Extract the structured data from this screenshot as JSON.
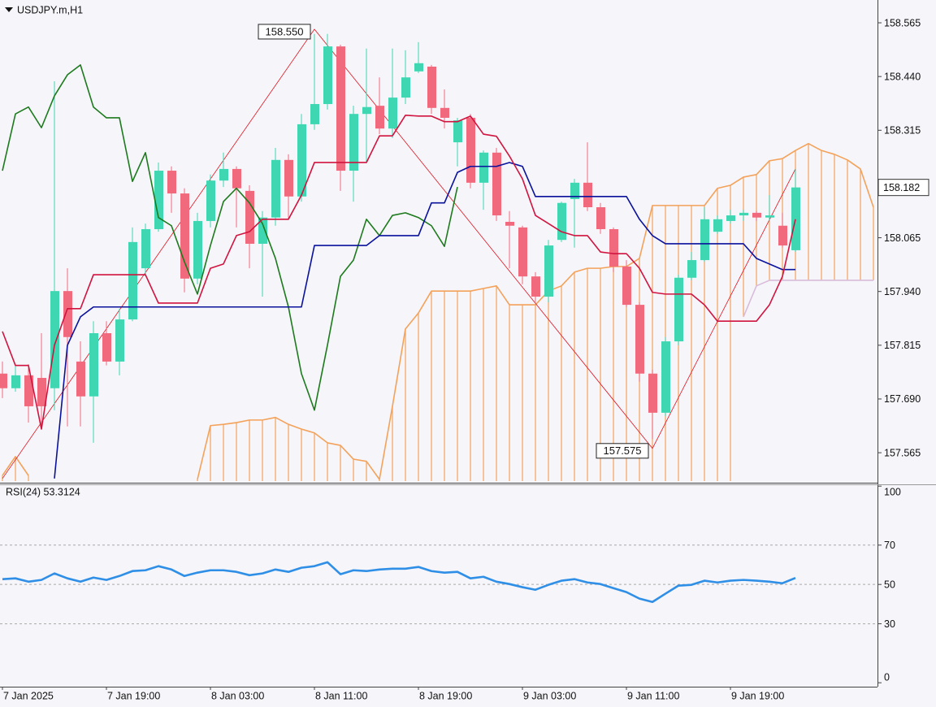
{
  "chart_data": [
    {
      "type": "candlestick",
      "title": "USDJPY.m,H1",
      "categories": [
        "7 Jan 2025",
        null,
        null,
        null,
        null,
        null,
        null,
        null,
        "7 Jan 19:00",
        null,
        null,
        null,
        null,
        null,
        null,
        null,
        "8 Jan 03:00",
        null,
        null,
        null,
        null,
        null,
        null,
        null,
        "8 Jan 11:00",
        null,
        null,
        null,
        null,
        null,
        null,
        null,
        "8 Jan 19:00",
        null,
        null,
        null,
        null,
        null,
        null,
        null,
        "9 Jan 03:00",
        null,
        null,
        null,
        null,
        null,
        null,
        null,
        "9 Jan 11:00",
        null,
        null,
        null,
        null,
        null,
        null,
        null,
        "9 Jan 19:00",
        null,
        null,
        null,
        null,
        null,
        null,
        null,
        null,
        null,
        null,
        null
      ],
      "open": [
        157.749,
        157.715,
        157.745,
        157.739,
        157.715,
        157.941,
        157.777,
        157.696,
        157.843,
        157.777,
        157.875,
        157.994,
        158.085,
        158.221,
        158.168,
        157.97,
        158.104,
        158.198,
        158.225,
        158.174,
        158.051,
        158.112,
        158.246,
        158.161,
        158.329,
        158.376,
        158.51,
        158.221,
        158.353,
        158.372,
        158.319,
        158.391,
        158.452,
        158.463,
        158.367,
        158.287,
        158.344,
        158.193,
        158.263,
        158.102,
        158.089,
        157.975,
        157.928,
        158.06,
        158.155,
        158.193,
        158.136,
        158.085,
        157.998,
        157.909,
        157.749,
        157.658,
        157.824,
        157.972,
        158.013,
        158.079,
        158.104,
        158.117,
        158.123,
        158.112,
        158.093,
        158.036,
        null,
        null,
        null,
        null,
        null,
        null
      ],
      "high": [
        157.777,
        157.768,
        157.771,
        157.843,
        158.429,
        157.994,
        157.824,
        157.871,
        157.871,
        157.9,
        158.089,
        158.098,
        158.24,
        158.231,
        158.18,
        158.123,
        158.212,
        158.263,
        158.231,
        158.187,
        158.127,
        158.274,
        158.259,
        158.353,
        158.539,
        158.539,
        158.514,
        158.372,
        158.505,
        158.438,
        158.505,
        158.501,
        158.52,
        158.467,
        158.41,
        158.344,
        158.353,
        158.268,
        158.274,
        158.127,
        158.093,
        157.985,
        158.06,
        158.149,
        158.202,
        158.287,
        158.146,
        158.089,
        158.013,
        157.915,
        157.758,
        157.834,
        157.979,
        158.032,
        158.136,
        158.117,
        158.13,
        158.13,
        158.127,
        158.164,
        158.123,
        158.225,
        null,
        null,
        null,
        null,
        null,
        null
      ],
      "low": [
        157.692,
        157.707,
        157.635,
        157.62,
        157.664,
        157.626,
        157.626,
        157.588,
        157.768,
        157.745,
        157.871,
        157.975,
        158.079,
        158.123,
        157.938,
        157.957,
        158.089,
        158.183,
        158.089,
        157.994,
        157.928,
        158.093,
        158.108,
        158.149,
        158.316,
        158.363,
        158.174,
        158.149,
        158.24,
        158.306,
        158.297,
        158.376,
        158.448,
        158.353,
        158.319,
        158.231,
        158.18,
        158.13,
        158.104,
        157.994,
        157.957,
        157.915,
        157.915,
        158.055,
        158.042,
        158.127,
        158.074,
        157.985,
        157.904,
        157.73,
        157.597,
        157.65,
        157.815,
        157.966,
        158.009,
        158.074,
        158.098,
        158.104,
        158.104,
        158.104,
        158.042,
        158.032,
        null,
        null,
        null,
        null,
        null,
        null
      ],
      "close": [
        157.715,
        157.745,
        157.673,
        157.673,
        157.941,
        157.834,
        157.696,
        157.843,
        157.777,
        157.875,
        158.055,
        158.085,
        158.221,
        158.168,
        157.97,
        158.104,
        158.198,
        158.225,
        158.18,
        158.051,
        158.112,
        158.246,
        158.161,
        158.329,
        158.376,
        158.51,
        158.221,
        158.353,
        158.369,
        158.319,
        158.391,
        158.438,
        158.471,
        158.367,
        158.344,
        158.338,
        158.193,
        158.263,
        158.117,
        158.093,
        157.975,
        157.928,
        158.047,
        158.146,
        158.193,
        158.136,
        158.085,
        157.998,
        157.909,
        157.749,
        157.658,
        157.824,
        157.972,
        158.013,
        158.108,
        158.108,
        158.117,
        158.123,
        158.112,
        158.117,
        158.047,
        158.182,
        null,
        null,
        null,
        null,
        null,
        null
      ],
      "bull_color": "#3fd6b2",
      "bear_color": "#f1697c",
      "ylim": [
        157.499,
        158.618
      ],
      "yticks": [
        {
          "value": 158.565,
          "label": "158.565"
        },
        {
          "value": 158.44,
          "label": "158.440"
        },
        {
          "value": 158.315,
          "label": "158.315"
        },
        {
          "value": 158.065,
          "label": "158.065"
        },
        {
          "value": 157.94,
          "label": "157.940"
        },
        {
          "value": 157.815,
          "label": "157.815"
        },
        {
          "value": 157.69,
          "label": "157.690"
        },
        {
          "value": 157.565,
          "label": "157.565"
        }
      ],
      "current_price": {
        "value": 158.182,
        "label": "158.182"
      },
      "cloud": {
        "color": "#f4a25a",
        "lower_color": "#d9bcd9",
        "upper": [
          157.512,
          157.556,
          157.512,
          null,
          null,
          null,
          null,
          null,
          null,
          null,
          null,
          null,
          null,
          null,
          null,
          157.503,
          157.628,
          157.631,
          157.635,
          157.641,
          157.641,
          157.647,
          157.631,
          157.62,
          157.611,
          157.588,
          157.582,
          157.55,
          157.545,
          157.503,
          157.673,
          157.853,
          157.89,
          157.941,
          157.941,
          157.941,
          157.941,
          157.947,
          157.953,
          157.909,
          157.909,
          157.909,
          157.941,
          157.953,
          157.985,
          157.994,
          157.994,
          157.998,
          157.998,
          158.017,
          158.14,
          158.14,
          158.14,
          158.14,
          158.14,
          158.18,
          158.187,
          158.206,
          158.212,
          158.244,
          158.249,
          158.268,
          158.284,
          158.268,
          158.259,
          158.246,
          158.225,
          158.136
        ],
        "lower": [
          null,
          null,
          null,
          null,
          null,
          null,
          null,
          null,
          null,
          null,
          null,
          null,
          null,
          null,
          null,
          null,
          null,
          null,
          null,
          null,
          null,
          null,
          null,
          null,
          null,
          null,
          null,
          null,
          null,
          null,
          null,
          null,
          null,
          null,
          null,
          null,
          null,
          null,
          null,
          null,
          null,
          null,
          null,
          null,
          null,
          null,
          null,
          null,
          null,
          null,
          null,
          null,
          null,
          null,
          null,
          null,
          null,
          157.881,
          157.953,
          157.966,
          157.966,
          157.966,
          157.966,
          157.966,
          157.966,
          157.966,
          157.966,
          157.966
        ]
      },
      "overlays": [
        {
          "color": "#1d7a1d",
          "values": [
            158.221,
            158.353,
            158.369,
            158.321,
            158.395,
            158.444,
            158.467,
            158.369,
            158.344,
            158.344,
            158.196,
            158.263,
            158.112,
            158.093,
            158.009,
            157.934,
            158.047,
            158.149,
            158.18,
            158.146,
            158.098,
            158.017,
            157.904,
            157.749,
            157.664,
            157.815,
            157.975,
            158.013,
            158.108,
            158.07,
            158.117,
            158.123,
            158.112,
            158.093,
            158.045,
            158.183,
            null,
            null,
            null,
            null,
            null,
            null,
            null,
            null,
            null,
            null,
            null,
            null,
            null,
            null,
            null,
            null,
            null,
            null,
            null,
            null,
            null,
            null,
            null,
            null,
            null,
            null,
            null,
            null,
            null,
            null,
            null,
            null
          ]
        },
        {
          "color": "#0a129c",
          "values": [
            null,
            null,
            null,
            null,
            157.505,
            157.815,
            157.881,
            157.904,
            157.904,
            157.904,
            157.904,
            157.904,
            157.904,
            157.904,
            157.904,
            157.904,
            157.904,
            157.904,
            157.904,
            157.904,
            157.904,
            157.904,
            157.904,
            157.904,
            158.047,
            158.047,
            158.047,
            158.047,
            158.047,
            158.07,
            158.07,
            158.07,
            158.07,
            158.146,
            158.146,
            158.217,
            158.231,
            158.231,
            158.231,
            158.24,
            158.231,
            158.161,
            158.161,
            158.161,
            158.161,
            158.161,
            158.161,
            158.161,
            158.161,
            158.108,
            158.07,
            158.051,
            158.051,
            158.051,
            158.051,
            158.051,
            158.051,
            158.051,
            158.017,
            158.004,
            157.991,
            157.991,
            null,
            null,
            null,
            null,
            null,
            null
          ]
        },
        {
          "color": "#d1143f",
          "values": [
            157.847,
            157.768,
            157.768,
            157.62,
            157.815,
            157.9,
            157.9,
            157.979,
            157.979,
            157.979,
            157.979,
            157.979,
            157.913,
            157.913,
            157.913,
            157.913,
            157.994,
            158.004,
            158.07,
            158.079,
            158.108,
            158.108,
            158.108,
            158.164,
            158.24,
            158.24,
            158.24,
            158.24,
            158.24,
            158.302,
            158.302,
            158.35,
            158.348,
            158.348,
            158.335,
            158.335,
            158.348,
            158.306,
            158.301,
            158.255,
            158.202,
            158.117,
            158.098,
            158.079,
            158.07,
            158.07,
            158.032,
            158.028,
            158.028,
            157.994,
            157.938,
            157.934,
            157.934,
            157.934,
            157.909,
            157.871,
            157.871,
            157.871,
            157.871,
            157.909,
            157.975,
            158.108,
            null,
            null,
            null,
            null,
            null,
            null
          ]
        }
      ],
      "zigzag": {
        "color": "#e3121e",
        "x": [
          0,
          24,
          50,
          61
        ],
        "values": [
          157.505,
          158.55,
          157.575,
          158.225
        ]
      },
      "annotations": [
        {
          "x": 24,
          "value": 158.55,
          "label": "158.550"
        },
        {
          "x": 50,
          "value": 157.575,
          "label": "157.575"
        }
      ]
    },
    {
      "type": "line",
      "title": "RSI(24) 53.3124",
      "color": "#2f8fe6",
      "values": [
        52.7,
        53.1,
        51.4,
        52.3,
        55.6,
        53.1,
        51.4,
        53.5,
        52.3,
        54.3,
        56.8,
        57.2,
        59.3,
        57.6,
        54.3,
        56.0,
        57.2,
        57.2,
        56.4,
        54.7,
        55.6,
        57.6,
        56.4,
        58.5,
        59.3,
        61.3,
        55.2,
        57.2,
        56.8,
        57.6,
        58.0,
        58.0,
        58.9,
        56.8,
        56.0,
        56.4,
        53.1,
        53.9,
        51.4,
        50.2,
        48.6,
        47.3,
        49.8,
        51.9,
        52.7,
        51.0,
        50.2,
        48.1,
        46.1,
        42.8,
        41.1,
        45.3,
        49.4,
        49.8,
        51.9,
        51.0,
        51.9,
        52.3,
        51.9,
        51.4,
        50.6,
        53.31,
        null,
        null,
        null,
        null,
        null,
        null
      ],
      "ylim": [
        -2,
        100.5
      ],
      "yticks": [
        100,
        70,
        50,
        30,
        0
      ],
      "levels": [
        70,
        50,
        30
      ]
    }
  ]
}
